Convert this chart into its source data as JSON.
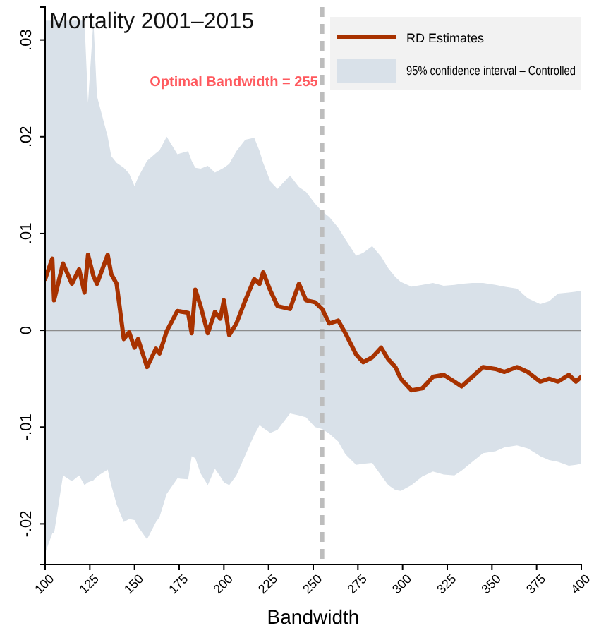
{
  "chart_data": {
    "type": "line",
    "title": "Mortality 2001–2015",
    "xlabel": "Bandwidth",
    "xlim": [
      100,
      400
    ],
    "xticks": [
      100,
      125,
      150,
      175,
      200,
      225,
      250,
      275,
      300,
      325,
      350,
      375,
      400
    ],
    "ylim": [
      -0.0242,
      0.0334
    ],
    "yticks": [
      {
        "value": -0.02,
        "label": "-.02"
      },
      {
        "value": -0.01,
        "label": "-.01"
      },
      0,
      {
        "value": 0.01,
        "label": ".01"
      },
      {
        "value": 0.02,
        "label": ".02"
      },
      {
        "value": 0.03,
        "label": ".03"
      }
    ],
    "grid": false,
    "legend": "top right",
    "marker": "none",
    "ref_lines": [
      {
        "axis": "x",
        "value": 255,
        "label": "Optimal Bandwidth = 255",
        "color": "#bdbdbd",
        "line_style": "dashed"
      },
      {
        "axis": "y",
        "value": 0,
        "color": "#8c8c8c",
        "line_style": "solid"
      }
    ],
    "series": [
      {
        "type": "area",
        "name": "95% confidence interval – Controlled",
        "color": "#d9e1e9"
      },
      {
        "name": "RD Estimates",
        "color": "#a83200",
        "x": [
          100,
          104,
          105,
          110,
          115,
          119,
          122,
          124,
          127,
          129,
          135,
          137,
          140,
          144,
          147,
          150,
          152,
          157,
          162,
          164,
          168,
          174,
          180,
          182,
          184,
          187,
          191,
          195,
          198,
          200,
          203,
          207,
          212,
          217,
          220,
          222,
          226,
          230,
          237,
          242,
          246,
          251,
          255,
          259,
          264,
          268,
          274,
          278,
          283,
          288,
          292,
          296,
          299,
          305,
          311,
          317,
          323,
          329,
          333,
          339,
          345,
          352,
          357,
          364,
          370,
          377,
          382,
          387,
          393,
          397,
          400
        ],
        "values": [
          0.0053,
          0.0074,
          0.0031,
          0.0069,
          0.0048,
          0.0063,
          0.0039,
          0.0078,
          0.0056,
          0.0048,
          0.0078,
          0.0058,
          0.0048,
          -0.0009,
          -0.0002,
          -0.0018,
          -0.0009,
          -0.0038,
          -0.0019,
          -0.0024,
          -0.0001,
          0.002,
          0.0018,
          -0.0003,
          0.0042,
          0.0025,
          -0.0003,
          0.0019,
          0.0012,
          0.0031,
          -0.0005,
          0.0007,
          0.0031,
          0.0053,
          0.0048,
          0.006,
          0.0041,
          0.0025,
          0.0022,
          0.0048,
          0.0031,
          0.0029,
          0.0022,
          0.0007,
          0.001,
          -0.0003,
          -0.0025,
          -0.0033,
          -0.0028,
          -0.0018,
          -0.003,
          -0.0038,
          -0.005,
          -0.0062,
          -0.006,
          -0.0048,
          -0.0046,
          -0.0053,
          -0.0058,
          -0.0048,
          -0.0038,
          -0.004,
          -0.0043,
          -0.0038,
          -0.0043,
          -0.0053,
          -0.005,
          -0.0053,
          -0.0046,
          -0.0053,
          -0.0048
        ],
        "upper": [
          0.032,
          0.032,
          0.032,
          0.032,
          0.032,
          0.032,
          0.032,
          0.0235,
          0.032,
          0.0242,
          0.02,
          0.018,
          0.0173,
          0.0168,
          0.0162,
          0.0149,
          0.0158,
          0.0175,
          0.0183,
          0.0186,
          0.02,
          0.0182,
          0.0185,
          0.0175,
          0.0168,
          0.0167,
          0.017,
          0.0163,
          0.0166,
          0.0168,
          0.0172,
          0.0185,
          0.0197,
          0.0199,
          0.0185,
          0.0173,
          0.0154,
          0.0146,
          0.016,
          0.0148,
          0.0143,
          0.0131,
          0.0123,
          0.0117,
          0.0106,
          0.0094,
          0.0077,
          0.008,
          0.0087,
          0.0076,
          0.0064,
          0.0055,
          0.005,
          0.0045,
          0.0047,
          0.0049,
          0.0046,
          0.0047,
          0.0048,
          0.0049,
          0.0049,
          0.0047,
          0.0045,
          0.0043,
          0.0033,
          0.0027,
          0.003,
          0.0038,
          0.0039,
          0.004,
          0.0041
        ],
        "lower": [
          -0.023,
          -0.021,
          -0.021,
          -0.015,
          -0.0156,
          -0.015,
          -0.016,
          -0.0157,
          -0.0155,
          -0.0151,
          -0.0144,
          -0.016,
          -0.018,
          -0.0198,
          -0.0195,
          -0.0196,
          -0.0203,
          -0.0216,
          -0.0198,
          -0.0193,
          -0.0169,
          -0.0153,
          -0.0154,
          -0.013,
          -0.0132,
          -0.0148,
          -0.016,
          -0.0143,
          -0.0151,
          -0.0157,
          -0.016,
          -0.015,
          -0.0129,
          -0.0108,
          -0.0098,
          -0.0101,
          -0.0106,
          -0.0103,
          -0.0086,
          -0.0088,
          -0.009,
          -0.01,
          -0.0102,
          -0.0107,
          -0.0115,
          -0.0128,
          -0.0139,
          -0.0138,
          -0.0137,
          -0.015,
          -0.016,
          -0.0165,
          -0.0166,
          -0.016,
          -0.0151,
          -0.0146,
          -0.0149,
          -0.015,
          -0.0145,
          -0.0136,
          -0.0127,
          -0.0125,
          -0.0121,
          -0.0119,
          -0.0122,
          -0.013,
          -0.0134,
          -0.0136,
          -0.014,
          -0.0139,
          -0.0138
        ]
      }
    ]
  }
}
